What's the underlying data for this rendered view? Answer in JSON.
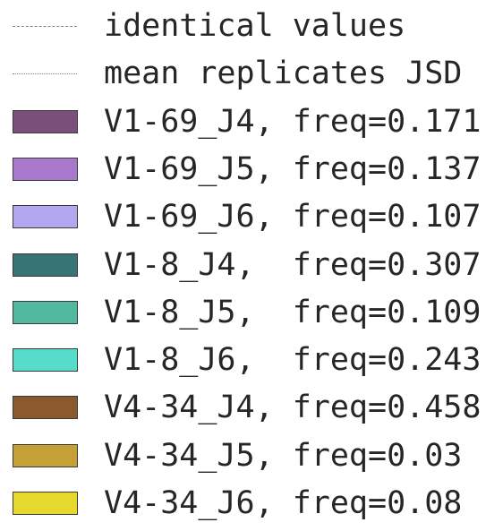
{
  "chart_data": {
    "type": "legend",
    "entries": [
      {
        "label": "identical values",
        "marker": "line",
        "line_style": "dashed",
        "color": "#808080"
      },
      {
        "label": "mean replicates JSD",
        "marker": "line",
        "line_style": "dotted",
        "color": "#808080"
      },
      {
        "label": "V1-69_J4, freq=0.171",
        "marker": "patch",
        "color": "#7a4f7a"
      },
      {
        "label": "V1-69_J5, freq=0.137",
        "marker": "patch",
        "color": "#a878cc"
      },
      {
        "label": "V1-69_J6, freq=0.107",
        "marker": "patch",
        "color": "#b3a8f0"
      },
      {
        "label": "V1-8_J4,  freq=0.307",
        "marker": "patch",
        "color": "#357575"
      },
      {
        "label": "V1-8_J5,  freq=0.109",
        "marker": "patch",
        "color": "#52b8a0"
      },
      {
        "label": "V1-8_J6,  freq=0.243",
        "marker": "patch",
        "color": "#55dccb"
      },
      {
        "label": "V4-34_J4, freq=0.458",
        "marker": "patch",
        "color": "#8a5a2e"
      },
      {
        "label": "V4-34_J5, freq=0.03",
        "marker": "patch",
        "color": "#c4a035"
      },
      {
        "label": "V4-34_J6, freq=0.08",
        "marker": "patch",
        "color": "#e6d82c"
      }
    ]
  }
}
